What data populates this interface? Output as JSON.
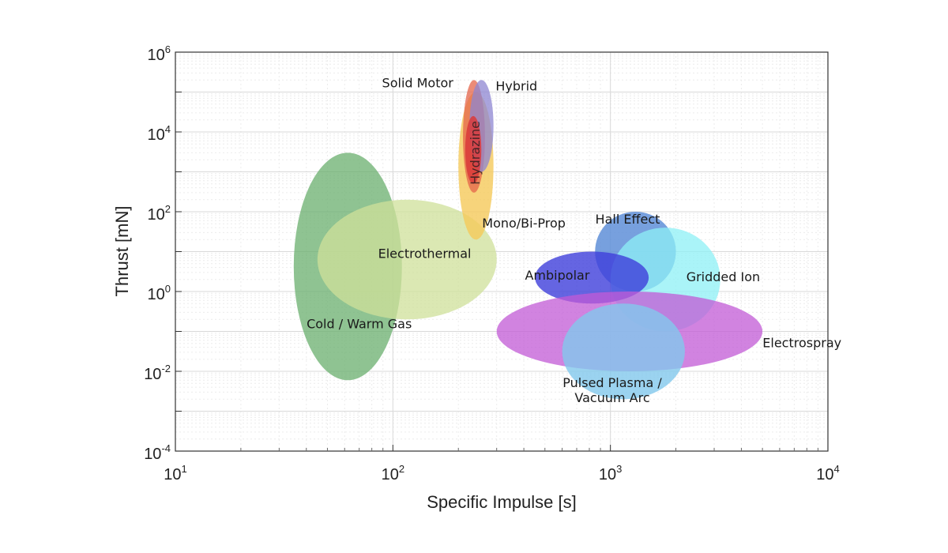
{
  "chart_data": {
    "type": "scatter",
    "xlabel": "Specific Impulse [s]",
    "ylabel": "Thrust [mN]",
    "x_scale": "log",
    "y_scale": "log",
    "xlim": [
      10,
      10000
    ],
    "ylim": [
      0.0001,
      1000000
    ],
    "grid": true,
    "x_ticks": [
      {
        "base": "10",
        "exp": "1",
        "value": 10
      },
      {
        "base": "10",
        "exp": "2",
        "value": 100
      },
      {
        "base": "10",
        "exp": "3",
        "value": 1000
      },
      {
        "base": "10",
        "exp": "4",
        "value": 10000
      }
    ],
    "y_ticks": [
      {
        "base": "10",
        "exp": "-4",
        "value": 0.0001
      },
      {
        "base": "10",
        "exp": "-2",
        "value": 0.01
      },
      {
        "base": "10",
        "exp": "0",
        "value": 1
      },
      {
        "base": "10",
        "exp": "2",
        "value": 100
      },
      {
        "base": "10",
        "exp": "4",
        "value": 10000
      },
      {
        "base": "10",
        "exp": "6",
        "value": 1000000
      }
    ],
    "regions": [
      {
        "name": "Cold / Warm Gas",
        "isp_range": [
          35,
          110
        ],
        "thrust_range": [
          0.006,
          3000
        ],
        "color": "#6aaf6e",
        "opacity": 0.75
      },
      {
        "name": "Electrothermal",
        "isp_range": [
          45,
          300
        ],
        "thrust_range": [
          0.2,
          200
        ],
        "color": "#cfe09a",
        "opacity": 0.75
      },
      {
        "name": "Mono/Bi-Prop",
        "isp_range": [
          200,
          290
        ],
        "thrust_range": [
          20,
          100000
        ],
        "color": "#f5c95a",
        "opacity": 0.8
      },
      {
        "name": "Solid Motor",
        "isp_range": [
          210,
          265
        ],
        "thrust_range": [
          300,
          200000
        ],
        "color": "#e4644a",
        "opacity": 0.75
      },
      {
        "name": "Hybrid",
        "isp_range": [
          225,
          290
        ],
        "thrust_range": [
          1000,
          200000
        ],
        "color": "#8d86d2",
        "opacity": 0.75
      },
      {
        "name": "Hydrazine",
        "isp_range": [
          215,
          255
        ],
        "thrust_range": [
          500,
          25000
        ],
        "color": "#d93a3a",
        "opacity": 0.85
      },
      {
        "name": "Hall Effect",
        "isp_range": [
          850,
          2000
        ],
        "thrust_range": [
          1,
          100
        ],
        "color": "#5f8fd8",
        "opacity": 0.85
      },
      {
        "name": "Gridded Ion",
        "isp_range": [
          1000,
          3200
        ],
        "thrust_range": [
          0.1,
          40
        ],
        "color": "#8ef0f5",
        "opacity": 0.75
      },
      {
        "name": "Ambipolar",
        "isp_range": [
          450,
          1500
        ],
        "thrust_range": [
          0.5,
          10
        ],
        "color": "#3f3fdb",
        "opacity": 0.8
      },
      {
        "name": "Electrospray",
        "isp_range": [
          300,
          5000
        ],
        "thrust_range": [
          0.01,
          1
        ],
        "color": "#c15ad6",
        "opacity": 0.75
      },
      {
        "name": "Pulsed Plasma / Vacuum Arc",
        "isp_range": [
          600,
          2200
        ],
        "thrust_range": [
          0.002,
          0.5
        ],
        "color": "#82c8ec",
        "opacity": 0.8
      }
    ],
    "labels": [
      {
        "text": "Solid Motor",
        "isp": 130,
        "thrust": 130000
      },
      {
        "text": "Hybrid",
        "isp": 370,
        "thrust": 110000
      },
      {
        "text": "Hydrazine",
        "isp": 250,
        "thrust": 3000,
        "rotated": true
      },
      {
        "text": "Mono/Bi-Prop",
        "isp": 400,
        "thrust": 40
      },
      {
        "text": "Electrothermal",
        "isp": 140,
        "thrust": 7
      },
      {
        "text": "Cold / Warm Gas",
        "isp": 70,
        "thrust": 0.12
      },
      {
        "text": "Hall Effect",
        "isp": 1200,
        "thrust": 50
      },
      {
        "text": "Gridded Ion",
        "isp": 3300,
        "thrust": 1.8
      },
      {
        "text": "Ambipolar",
        "isp": 570,
        "thrust": 2.0
      },
      {
        "text": "Electrospray",
        "isp": 7600,
        "thrust": 0.04
      },
      {
        "text": "Pulsed Plasma /",
        "isp": 1020,
        "thrust": 0.004
      },
      {
        "text": "Vacuum Arc",
        "isp": 1020,
        "thrust": 0.0017
      }
    ]
  }
}
